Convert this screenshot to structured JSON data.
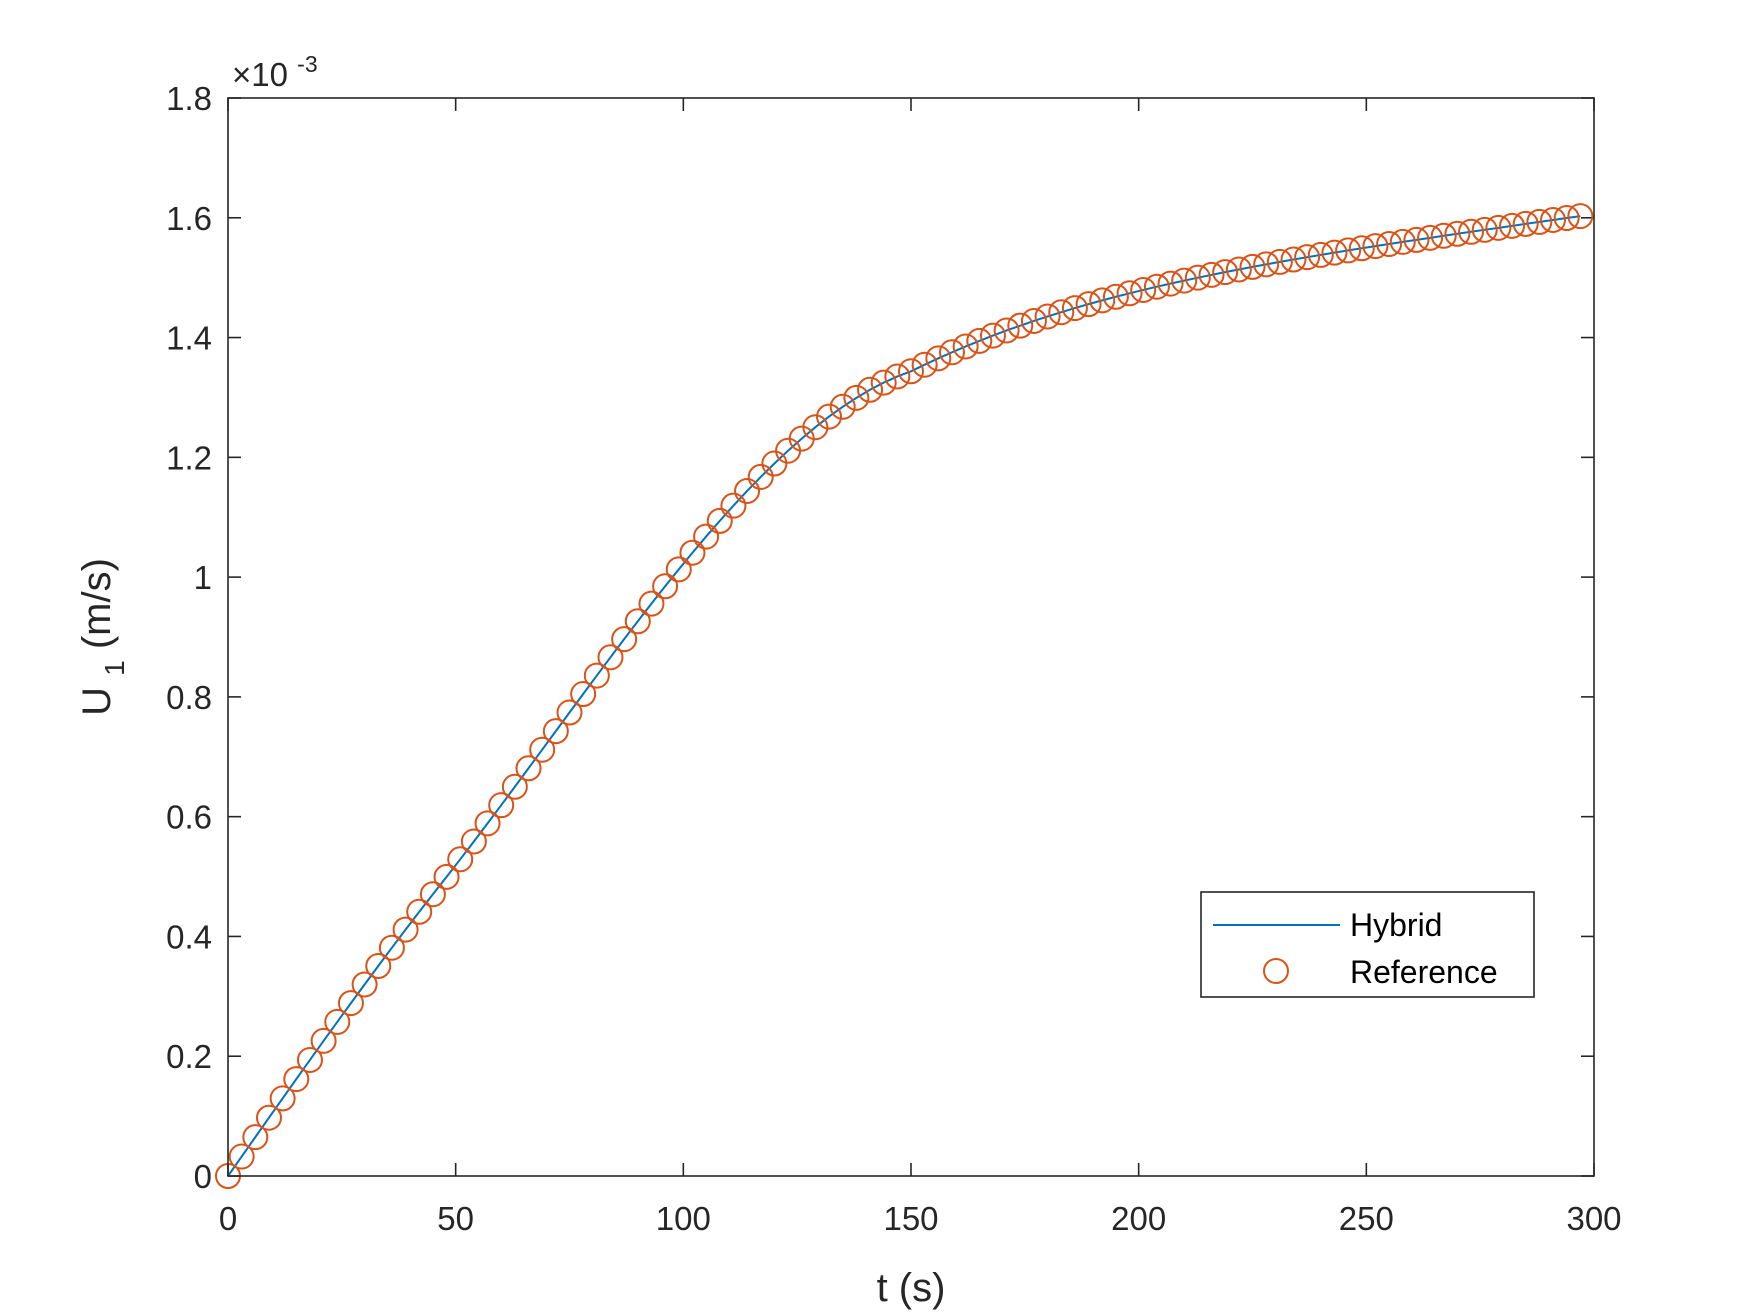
{
  "chart_data": {
    "type": "line",
    "xlabel": "t (s)",
    "ylabel_main": "U",
    "ylabel_sub": "1",
    "ylabel_unit": " (m/s)",
    "xlim": [
      0,
      300
    ],
    "ylim": [
      0,
      0.0018
    ],
    "x_ticks": [
      0,
      50,
      100,
      150,
      200,
      250,
      300
    ],
    "y_ticks": [
      0,
      0.0002,
      0.0004,
      0.0006,
      0.0008,
      0.001,
      0.0012,
      0.0014,
      0.0016,
      0.0018
    ],
    "x_tick_labels": [
      "0",
      "50",
      "100",
      "150",
      "200",
      "250",
      "300"
    ],
    "y_tick_labels": [
      "0",
      "0.2",
      "0.4",
      "0.6",
      "0.8",
      "1",
      "1.2",
      "1.4",
      "1.6",
      "1.8"
    ],
    "exponent_prefix": "×10",
    "exponent_power": "-3",
    "grid": false,
    "legend_position": "lower-right",
    "series": [
      {
        "name": "Hybrid",
        "style": "line",
        "color": "#0072BD"
      },
      {
        "name": "Reference",
        "style": "circle-markers",
        "color": "#D95319"
      }
    ],
    "x": [
      0,
      3,
      6,
      9,
      12,
      15,
      18,
      21,
      24,
      27,
      30,
      33,
      36,
      39,
      42,
      45,
      48,
      51,
      54,
      57,
      60,
      63,
      66,
      69,
      72,
      75,
      78,
      81,
      84,
      87,
      90,
      93,
      96,
      99,
      102,
      105,
      108,
      111,
      114,
      117,
      120,
      123,
      126,
      129,
      132,
      135,
      138,
      141,
      144,
      147,
      150,
      153,
      156,
      159,
      162,
      165,
      168,
      171,
      174,
      177,
      180,
      183,
      186,
      189,
      192,
      195,
      198,
      201,
      204,
      207,
      210,
      213,
      216,
      219,
      222,
      225,
      228,
      231,
      234,
      237,
      240,
      243,
      246,
      249,
      252,
      255,
      258,
      261,
      264,
      267,
      270,
      273,
      276,
      279,
      282,
      285,
      288,
      291,
      294,
      297
    ],
    "y": [
      0,
      3.25e-05,
      6.49e-05,
      9.73e-05,
      0.0001296,
      0.0001618,
      0.0001938,
      0.0002257,
      0.0002573,
      0.0002887,
      0.0003198,
      0.0003507,
      0.0003812,
      0.0004114,
      0.0004412,
      0.0004705,
      0.0004995,
      0.0005288,
      0.0005586,
      0.0005888,
      0.0006192,
      0.0006499,
      0.0006808,
      0.0007118,
      0.0007428,
      0.0007739,
      0.0008048,
      0.0008356,
      0.0008661,
      0.0008964,
      0.0009263,
      0.0009557,
      0.0009847,
      0.001013,
      0.0010407,
      0.0010677,
      0.0010939,
      0.0011193,
      0.0011438,
      0.0011673,
      0.0011897,
      0.0012111,
      0.0012313,
      0.0012503,
      0.001268,
      0.0012844,
      0.0012993,
      0.0013128,
      0.0013247,
      0.001335,
      0.0013437,
      0.0013547,
      0.0013653,
      0.0013754,
      0.0013851,
      0.0013944,
      0.0014033,
      0.0014118,
      0.0014199,
      0.0014277,
      0.0014352,
      0.0014423,
      0.0014492,
      0.0014558,
      0.0014621,
      0.0014681,
      0.0014739,
      0.0014795,
      0.0014849,
      0.0014901,
      0.0014951,
      0.0015,
      0.0015047,
      0.0015093,
      0.0015137,
      0.001518,
      0.0015222,
      0.0015263,
      0.0015303,
      0.0015342,
      0.001538,
      0.0015418,
      0.0015455,
      0.0015491,
      0.0015527,
      0.0015562,
      0.0015597,
      0.0015631,
      0.0015665,
      0.0015699,
      0.0015733,
      0.0015766,
      0.0015799,
      0.0015832,
      0.0015865,
      0.0015898,
      0.0015931,
      0.0015963,
      0.0015996,
      0.0016028
    ]
  }
}
